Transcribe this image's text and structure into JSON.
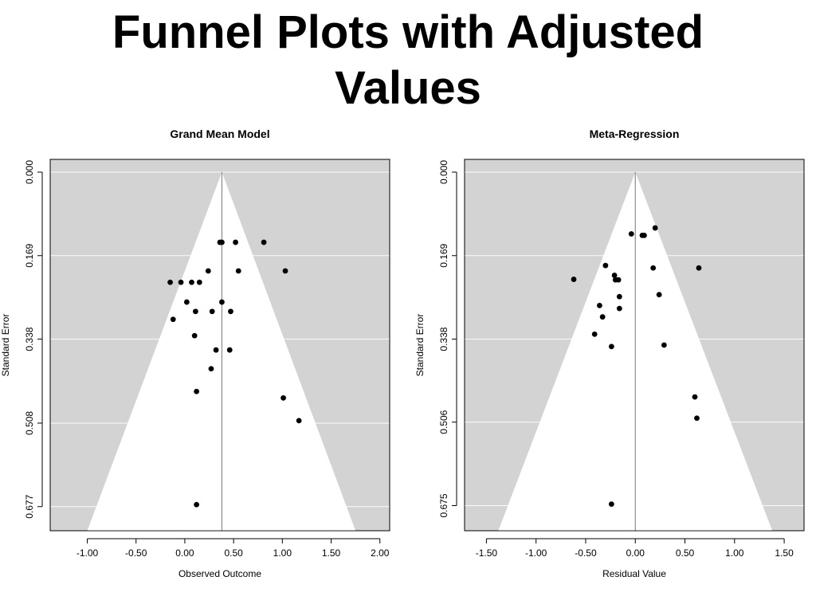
{
  "slide": {
    "title_line1": "Funnel Plots with Adjusted",
    "title_line2": "Values"
  },
  "colors": {
    "outside_funnel": "#d3d3d3",
    "funnel": "#ffffff",
    "points": "#000000",
    "gridline": "#ffffff",
    "center_line": "#8a8a8a"
  },
  "chart_data": [
    {
      "type": "scatter",
      "title": "Grand Mean Model",
      "xlabel": "Observed Outcome",
      "ylabel": "Standard Error",
      "xlim": [
        -1.38,
        2.1
      ],
      "ylim": [
        0.0,
        0.7
      ],
      "y_reversed": true,
      "xticks": [
        -1.0,
        -0.5,
        0.0,
        0.5,
        1.0,
        1.5,
        2.0
      ],
      "xtick_labels": [
        "-1.00",
        "-0.50",
        "0.00",
        "0.50",
        "1.00",
        "1.50",
        "2.00"
      ],
      "yticks": [
        0.0,
        0.169,
        0.338,
        0.508,
        0.677
      ],
      "ytick_labels": [
        "0.000",
        "0.169",
        "0.338",
        "0.508",
        "0.677"
      ],
      "funnel_center": 0.38,
      "funnel_apex_se": 0.0,
      "funnel_base_se": 0.7,
      "funnel_base_x": [
        -1.0,
        1.75
      ],
      "points": [
        {
          "x": 0.36,
          "y": 0.142
        },
        {
          "x": 0.38,
          "y": 0.142
        },
        {
          "x": 0.52,
          "y": 0.142
        },
        {
          "x": 0.81,
          "y": 0.142
        },
        {
          "x": 0.24,
          "y": 0.2
        },
        {
          "x": 0.55,
          "y": 0.2
        },
        {
          "x": 1.03,
          "y": 0.2
        },
        {
          "x": -0.15,
          "y": 0.223
        },
        {
          "x": -0.04,
          "y": 0.223
        },
        {
          "x": 0.07,
          "y": 0.223
        },
        {
          "x": 0.15,
          "y": 0.223
        },
        {
          "x": 0.02,
          "y": 0.263
        },
        {
          "x": 0.38,
          "y": 0.263
        },
        {
          "x": 0.11,
          "y": 0.282
        },
        {
          "x": 0.28,
          "y": 0.282
        },
        {
          "x": 0.47,
          "y": 0.282
        },
        {
          "x": -0.12,
          "y": 0.298
        },
        {
          "x": 0.1,
          "y": 0.331
        },
        {
          "x": 0.32,
          "y": 0.36
        },
        {
          "x": 0.46,
          "y": 0.36
        },
        {
          "x": 0.27,
          "y": 0.398
        },
        {
          "x": 0.12,
          "y": 0.444
        },
        {
          "x": 1.01,
          "y": 0.457
        },
        {
          "x": 1.17,
          "y": 0.503
        },
        {
          "x": 0.12,
          "y": 0.673
        }
      ]
    },
    {
      "type": "scatter",
      "title": "Meta-Regression",
      "xlabel": "Residual Value",
      "ylabel": "Standard Error",
      "xlim": [
        -1.72,
        1.7
      ],
      "ylim": [
        0.0,
        0.7
      ],
      "y_reversed": true,
      "xticks": [
        -1.5,
        -1.0,
        -0.5,
        0.0,
        0.5,
        1.0,
        1.5
      ],
      "xtick_labels": [
        "-1.50",
        "-1.00",
        "-0.50",
        "0.00",
        "0.50",
        "1.00",
        "1.50"
      ],
      "yticks": [
        0.0,
        0.169,
        0.338,
        0.506,
        0.675
      ],
      "ytick_labels": [
        "0.000",
        "0.169",
        "0.338",
        "0.506",
        "0.675"
      ],
      "funnel_center": 0.0,
      "funnel_apex_se": 0.0,
      "funnel_base_se": 0.7,
      "funnel_base_x": [
        -1.38,
        1.38
      ],
      "points": [
        {
          "x": 0.2,
          "y": 0.113
        },
        {
          "x": -0.04,
          "y": 0.125
        },
        {
          "x": 0.07,
          "y": 0.128
        },
        {
          "x": 0.09,
          "y": 0.128
        },
        {
          "x": -0.3,
          "y": 0.189
        },
        {
          "x": 0.18,
          "y": 0.194
        },
        {
          "x": 0.64,
          "y": 0.194
        },
        {
          "x": -0.21,
          "y": 0.209
        },
        {
          "x": -0.2,
          "y": 0.218
        },
        {
          "x": -0.17,
          "y": 0.218
        },
        {
          "x": -0.62,
          "y": 0.217
        },
        {
          "x": 0.24,
          "y": 0.248
        },
        {
          "x": -0.16,
          "y": 0.252
        },
        {
          "x": -0.36,
          "y": 0.27
        },
        {
          "x": -0.16,
          "y": 0.276
        },
        {
          "x": -0.33,
          "y": 0.293
        },
        {
          "x": -0.41,
          "y": 0.328
        },
        {
          "x": -0.24,
          "y": 0.353
        },
        {
          "x": 0.29,
          "y": 0.35
        },
        {
          "x": 0.6,
          "y": 0.455
        },
        {
          "x": 0.62,
          "y": 0.498
        },
        {
          "x": -0.24,
          "y": 0.672
        }
      ]
    }
  ]
}
